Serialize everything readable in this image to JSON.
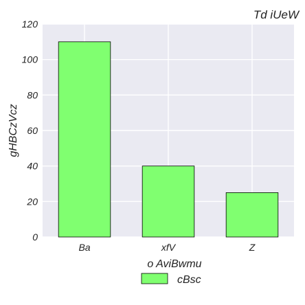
{
  "chart_data": {
    "type": "bar",
    "title": "Td  iUeW",
    "xlabel": "o AviBwmu",
    "ylabel": "gHBCzVcz",
    "categories": [
      "Ba",
      "xfV",
      "Z"
    ],
    "series": [
      {
        "name": "cBsc",
        "values": [
          110,
          40,
          25
        ],
        "color": "#80ff70"
      }
    ],
    "ylim": [
      0,
      120
    ],
    "yticks": [
      0,
      20,
      40,
      60,
      80,
      100,
      120
    ],
    "grid": true,
    "legend": "bottom-center",
    "background": "#eaeaf2",
    "edge_color": "#000000"
  }
}
